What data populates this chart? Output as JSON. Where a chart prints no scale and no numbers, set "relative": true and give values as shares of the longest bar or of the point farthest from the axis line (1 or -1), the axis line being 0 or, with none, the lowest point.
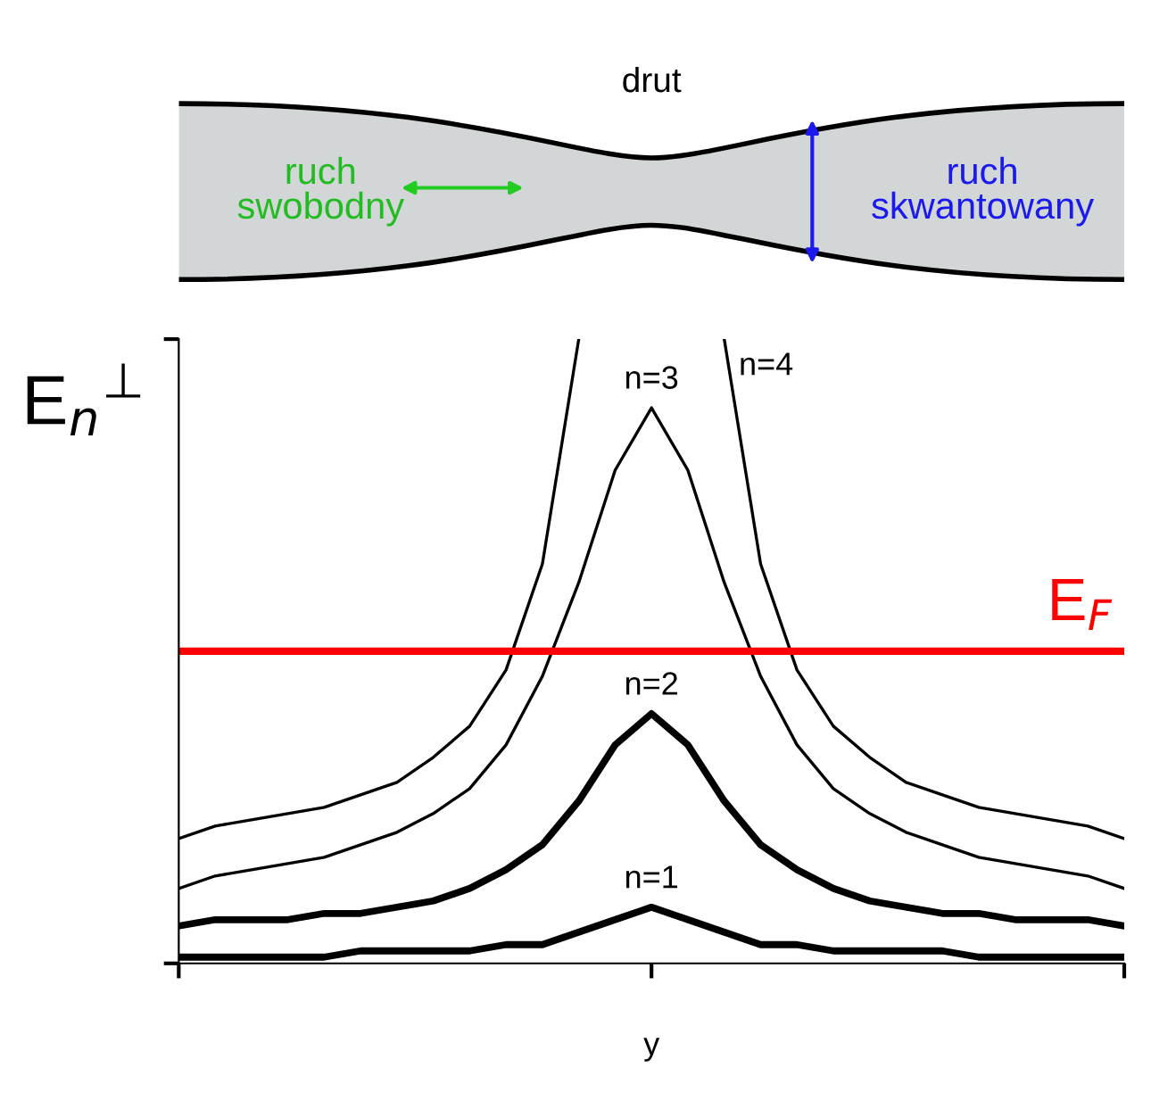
{
  "chart_data": {
    "type": "line",
    "relative": true,
    "xlabel": "y",
    "ylabel": "E$_{n}$$^{⊥}$",
    "tick_labels": false,
    "grid": false,
    "legend": false,
    "categories": [
      null,
      null,
      null,
      null,
      null,
      null,
      null,
      null,
      null,
      null,
      null,
      null,
      null,
      null,
      null,
      null,
      null,
      null,
      null,
      null,
      null,
      null,
      null,
      null,
      null,
      null,
      null
    ],
    "series": [
      {
        "name": "n=1",
        "color": "#000000",
        "values": [
          0.01,
          0.01,
          0.01,
          0.01,
          0.01,
          0.02,
          0.02,
          0.02,
          0.02,
          0.03,
          0.03,
          0.05,
          0.07,
          0.09,
          0.07,
          0.05,
          0.03,
          0.03,
          0.02,
          0.02,
          0.02,
          0.02,
          0.01,
          0.01,
          0.01,
          0.01,
          0.01
        ]
      },
      {
        "name": "n=2",
        "color": "#000000",
        "values": [
          0.06,
          0.07,
          0.07,
          0.07,
          0.08,
          0.08,
          0.09,
          0.1,
          0.12,
          0.15,
          0.19,
          0.26,
          0.35,
          0.4,
          0.35,
          0.26,
          0.19,
          0.15,
          0.12,
          0.1,
          0.09,
          0.08,
          0.08,
          0.07,
          0.07,
          0.07,
          0.06
        ]
      },
      {
        "name": "n=3",
        "color": "#000000",
        "values": [
          0.12,
          0.14,
          0.15,
          0.16,
          0.17,
          0.19,
          0.21,
          0.24,
          0.28,
          0.35,
          0.46,
          0.61,
          0.79,
          0.89,
          0.79,
          0.61,
          0.46,
          0.35,
          0.28,
          0.24,
          0.21,
          0.19,
          0.17,
          0.16,
          0.15,
          0.14,
          0.12
        ]
      },
      {
        "name": "n=4",
        "color": "#000000",
        "values": [
          0.2,
          0.22,
          0.23,
          0.24,
          0.25,
          0.27,
          0.29,
          0.33,
          0.38,
          0.47,
          0.64,
          1.0,
          null,
          null,
          null,
          1.0,
          0.64,
          0.47,
          0.38,
          0.33,
          0.29,
          0.27,
          0.25,
          0.24,
          0.23,
          0.22,
          0.2
        ]
      }
    ],
    "ref_lines": [
      {
        "axis": "y",
        "value": 0.5,
        "label": "E$_{F}$",
        "color": "#ff0000"
      }
    ],
    "annotations": [
      "drut",
      "ruch\nswobodny",
      "ruch\nskwantowany"
    ]
  }
}
